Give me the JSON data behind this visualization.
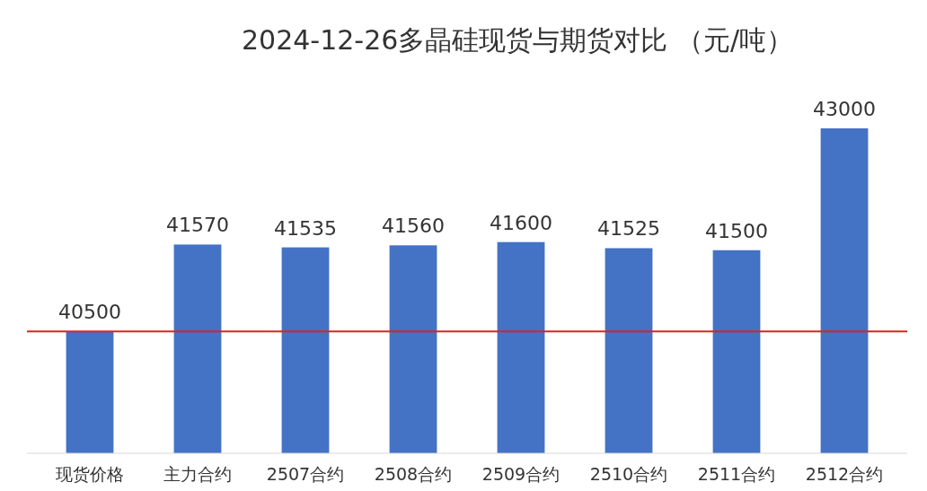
{
  "chart_data": {
    "type": "bar",
    "title": "2024-12-26多晶硅现货与期货对比 （元/吨）",
    "categories": [
      "现货价格",
      "主力合约",
      "2507合约",
      "2508合约",
      "2509合约",
      "2510合约",
      "2511合约",
      "2512合约"
    ],
    "values": [
      40500,
      41570,
      41535,
      41560,
      41600,
      41525,
      41500,
      43000
    ],
    "color": "#4472c4",
    "ylim": [
      39000,
      43000
    ],
    "data_labels": true,
    "ref_lines": [
      {
        "axis": "y",
        "value": 40500,
        "color": "#e02020"
      }
    ]
  }
}
